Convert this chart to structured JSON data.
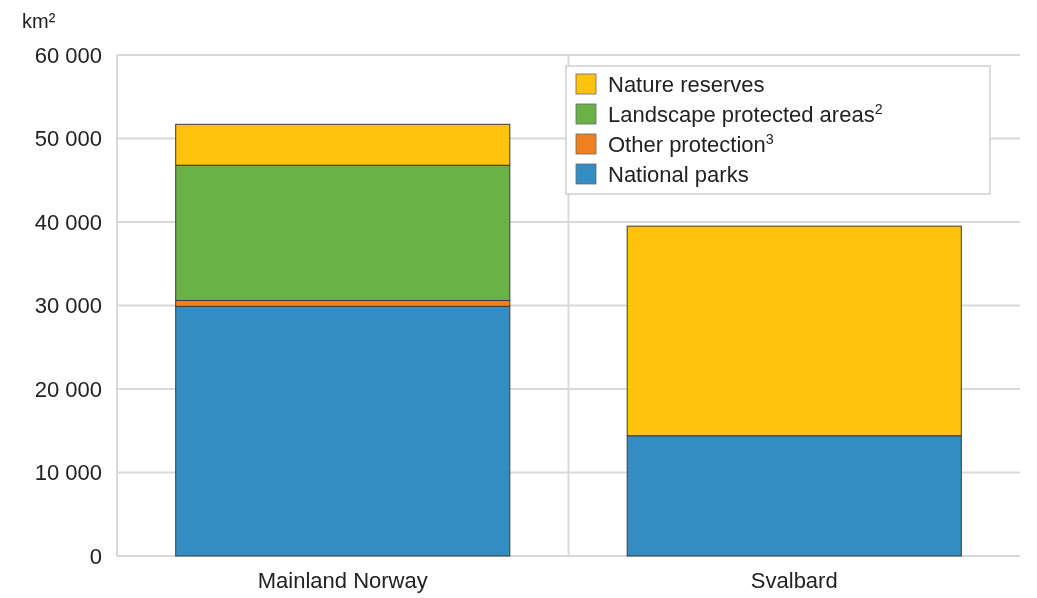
{
  "chart_data": {
    "type": "bar",
    "stacked": true,
    "ylabel": "km²",
    "categories": [
      "Mainland Norway",
      "Svalbard"
    ],
    "series": [
      {
        "name": "National parks",
        "color": "#338dc2",
        "values": [
          29900,
          14400
        ]
      },
      {
        "name": "Other protection$^{3}$",
        "color": "#f07f20",
        "values": [
          700,
          0
        ]
      },
      {
        "name": "Landscape protected areas$^{2}$",
        "color": "#6ab245",
        "values": [
          16200,
          0
        ]
      },
      {
        "name": "Nature reserves",
        "color": "#ffc20e",
        "values": [
          4900,
          25100
        ]
      }
    ],
    "ylim": [
      0,
      60000
    ],
    "yticks": [
      {
        "value": 0,
        "label": "0"
      },
      {
        "value": 10000,
        "label": "10 000"
      },
      {
        "value": 20000,
        "label": "20 000"
      },
      {
        "value": 30000,
        "label": "30 000"
      },
      {
        "value": 40000,
        "label": "40 000"
      },
      {
        "value": 50000,
        "label": "50 000"
      },
      {
        "value": 60000,
        "label": "60 000"
      }
    ],
    "grid": true,
    "legend": "top right"
  }
}
